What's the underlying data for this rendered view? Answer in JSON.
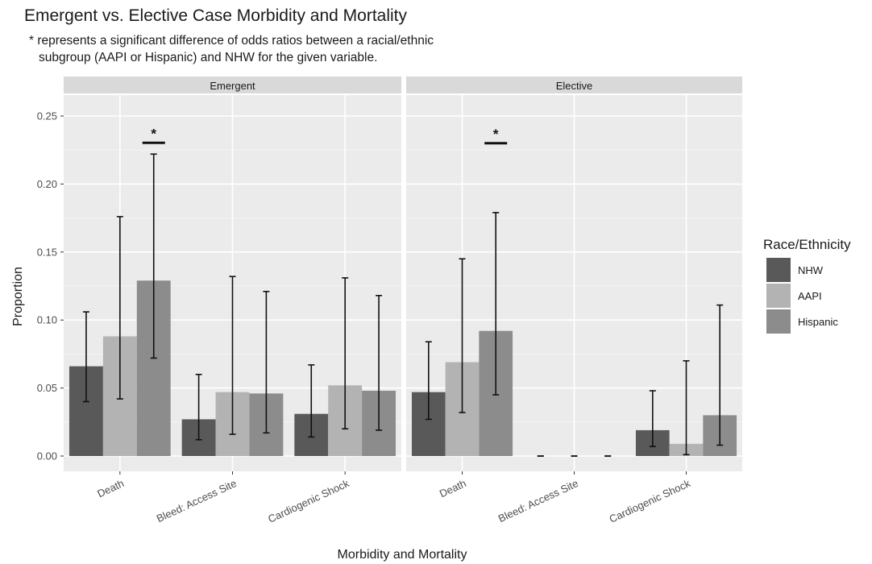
{
  "chart_data": {
    "type": "bar",
    "title": "Emergent vs. Elective Case Morbidity and Mortality",
    "subtitle_lines": [
      "* represents a significant difference of odds ratios between a racial/ethnic",
      "subgroup (AAPI or Hispanic) and NHW for the given variable."
    ],
    "xlabel": "Morbidity and Mortality",
    "ylabel": "Proportion",
    "ylim": [
      0,
      0.25
    ],
    "yticks": [
      "0.00",
      "0.05",
      "0.10",
      "0.15",
      "0.20",
      "0.25"
    ],
    "ytick_values": [
      0,
      0.05,
      0.1,
      0.15,
      0.2,
      0.25
    ],
    "categories": [
      "Death",
      "Bleed: Access Site",
      "Cardiogenic Shock"
    ],
    "grid": true,
    "legend": {
      "title": "Race/Ethnicity",
      "position": "right",
      "entries": [
        "NHW",
        "AAPI",
        "Hispanic"
      ]
    },
    "colors": {
      "NHW": "#595959",
      "AAPI": "#b3b3b3",
      "Hispanic": "#8c8c8c"
    },
    "significance_marker": "*",
    "panels": [
      {
        "strip": "Emergent",
        "series": [
          {
            "name": "NHW",
            "values": [
              0.066,
              0.027,
              0.031
            ],
            "lower": [
              0.04,
              0.012,
              0.014
            ],
            "upper": [
              0.106,
              0.06,
              0.067
            ]
          },
          {
            "name": "AAPI",
            "values": [
              0.088,
              0.047,
              0.052
            ],
            "lower": [
              0.042,
              0.016,
              0.02
            ],
            "upper": [
              0.176,
              0.132,
              0.131
            ]
          },
          {
            "name": "Hispanic",
            "values": [
              0.129,
              0.046,
              0.048
            ],
            "lower": [
              0.072,
              0.017,
              0.019
            ],
            "upper": [
              0.222,
              0.121,
              0.118
            ]
          }
        ],
        "significant": [
          "Death"
        ]
      },
      {
        "strip": "Elective",
        "series": [
          {
            "name": "NHW",
            "values": [
              0.047,
              0.0,
              0.019
            ],
            "lower": [
              0.027,
              0.0,
              0.007
            ],
            "upper": [
              0.084,
              0.0,
              0.048
            ]
          },
          {
            "name": "AAPI",
            "values": [
              0.069,
              0.0,
              0.009
            ],
            "lower": [
              0.032,
              0.0,
              0.001
            ],
            "upper": [
              0.145,
              0.0,
              0.07
            ]
          },
          {
            "name": "Hispanic",
            "values": [
              0.092,
              0.0,
              0.03
            ],
            "lower": [
              0.045,
              0.0,
              0.008
            ],
            "upper": [
              0.179,
              0.0,
              0.111
            ]
          }
        ],
        "significant": [
          "Death"
        ]
      }
    ]
  }
}
